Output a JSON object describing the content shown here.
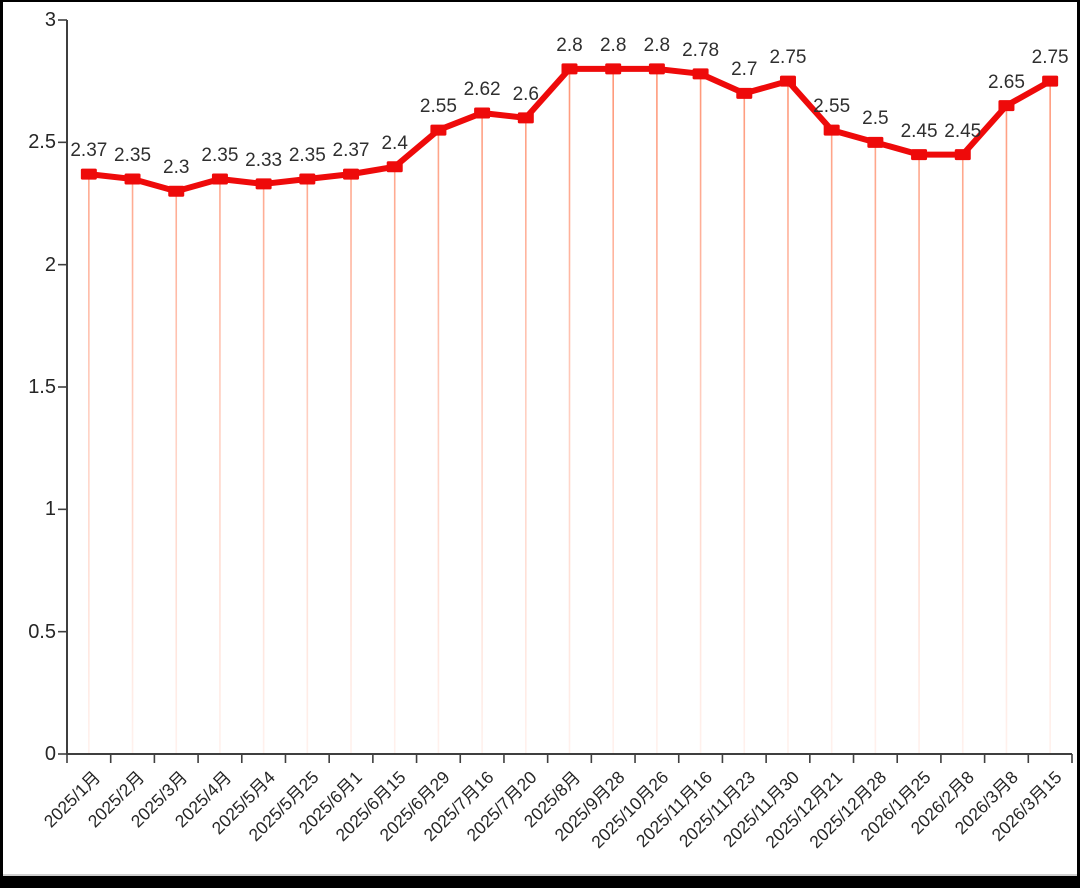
{
  "chart_data": {
    "type": "line",
    "title": "",
    "categories": [
      "2025/1月",
      "2025/2月",
      "2025/3月",
      "2025/4月",
      "2025/5月4",
      "2025/5月25",
      "2025/6月1",
      "2025/6月15",
      "2025/6月29",
      "2025/7月16",
      "2025/7月20",
      "2025/8月",
      "2025/9月28",
      "2025/10月26",
      "2025/11月16",
      "2025/11月23",
      "2025/11月30",
      "2025/12月21",
      "2025/12月28",
      "2026/1月25",
      "2026/2月8",
      "2026/3月8",
      "2026/3月15"
    ],
    "values": [
      2.37,
      2.35,
      2.3,
      2.35,
      2.33,
      2.35,
      2.37,
      2.4,
      2.55,
      2.62,
      2.6,
      2.8,
      2.8,
      2.8,
      2.78,
      2.7,
      2.75,
      2.55,
      2.5,
      2.45,
      2.45,
      2.65,
      2.75
    ],
    "point_labels": [
      "2.37",
      "2.35",
      "2.3",
      "2.35",
      "2.33",
      "2.35",
      "2.37",
      "2.4",
      "2.55",
      "2.62",
      "2.6",
      "2.8",
      "2.8",
      "2.8",
      "2.78",
      "2.7",
      "2.75",
      "2.55",
      "2.5",
      "2.45",
      "2.45",
      "2.65",
      "2.75"
    ],
    "xlabel": "",
    "ylabel": "",
    "y_axis": {
      "min": 0,
      "max": 3,
      "tick_labels": [
        "0",
        "0.5",
        "1",
        "1.5",
        "2",
        "2.5",
        "3"
      ]
    },
    "legend": "none",
    "grid": "off",
    "marker": "square",
    "droplines": true,
    "colors": {
      "series": "#ee0a0a",
      "dropline": "#ff7a52",
      "value_label": "#2f2f2f",
      "tick_label": "#262626",
      "axis_line": "#3f3f3f",
      "background": "#ffffff",
      "frame_bar": "#000000"
    }
  }
}
